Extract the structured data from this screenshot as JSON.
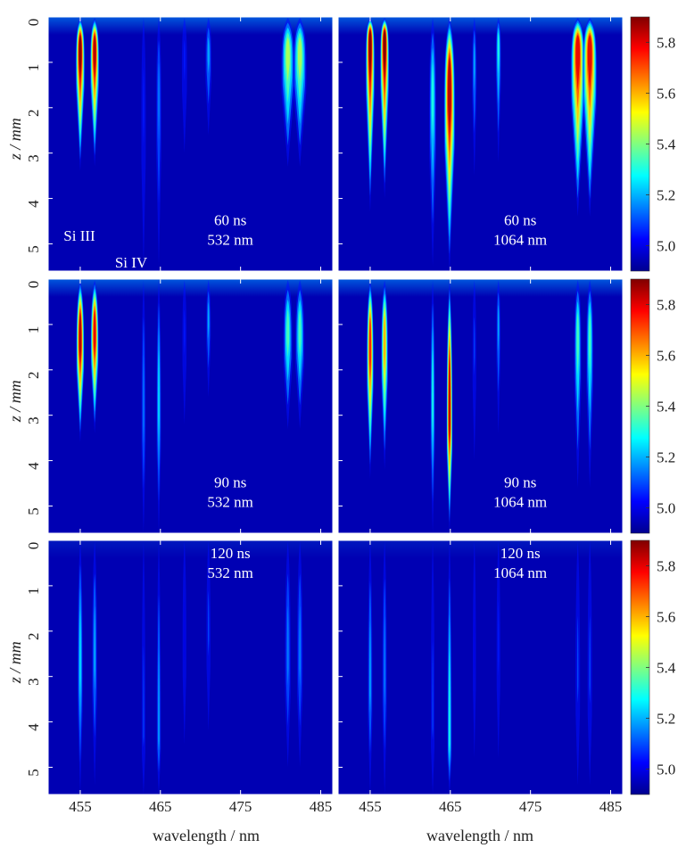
{
  "chart_data": {
    "type": "heatmap",
    "layout": "3 rows x 2 columns",
    "xlabel": "wavelength / nm",
    "ylabel": "z / mm",
    "xlim": [
      451,
      486.5
    ],
    "ylim": [
      0,
      5.6
    ],
    "x_ticks": [
      455,
      465,
      475,
      485
    ],
    "y_ticks": [
      0,
      1,
      2,
      3,
      4,
      5
    ],
    "colorbar": {
      "range": [
        4.9,
        5.9
      ],
      "ticks": [
        5.0,
        5.2,
        5.4,
        5.6,
        5.8
      ],
      "colors": [
        "#00008f",
        "#0000ff",
        "#0080ff",
        "#00ffff",
        "#80ff80",
        "#ffff00",
        "#ff8000",
        "#ff0000",
        "#800000"
      ]
    },
    "line_labels": [
      {
        "text": "Si III",
        "panel": 0
      },
      {
        "text": "Si IV",
        "panel": 0
      }
    ],
    "panels": [
      {
        "row": 0,
        "col": 0,
        "delay": "60 ns",
        "laser": "532 nm",
        "lines": [
          {
            "x": 455.0,
            "peak": 5.9,
            "z_peak": 0.7,
            "z_end": 3.4,
            "w": 0.45
          },
          {
            "x": 456.8,
            "peak": 5.85,
            "z_peak": 0.7,
            "z_end": 3.3,
            "w": 0.45
          },
          {
            "x": 462.9,
            "peak": 5.05,
            "z_peak": 2.0,
            "z_end": 5.5,
            "w": 0.22
          },
          {
            "x": 464.8,
            "peak": 5.15,
            "z_peak": 1.8,
            "z_end": 5.5,
            "w": 0.25
          },
          {
            "x": 468.0,
            "peak": 5.05,
            "z_peak": 0.9,
            "z_end": 3.0,
            "w": 0.25
          },
          {
            "x": 471.0,
            "peak": 5.2,
            "z_peak": 0.8,
            "z_end": 2.6,
            "w": 0.3
          },
          {
            "x": 480.9,
            "peak": 5.45,
            "z_peak": 0.8,
            "z_end": 3.3,
            "w": 0.65
          },
          {
            "x": 482.4,
            "peak": 5.45,
            "z_peak": 0.8,
            "z_end": 3.3,
            "w": 0.65
          }
        ]
      },
      {
        "row": 0,
        "col": 1,
        "delay": "60 ns",
        "laser": "1064 nm",
        "lines": [
          {
            "x": 455.0,
            "peak": 5.9,
            "z_peak": 0.5,
            "z_end": 4.3,
            "w": 0.45
          },
          {
            "x": 456.8,
            "peak": 5.9,
            "z_peak": 0.5,
            "z_end": 4.0,
            "w": 0.45
          },
          {
            "x": 462.8,
            "peak": 5.3,
            "z_peak": 1.8,
            "z_end": 5.5,
            "w": 0.35
          },
          {
            "x": 464.9,
            "peak": 5.85,
            "z_peak": 1.6,
            "z_end": 5.6,
            "w": 0.55
          },
          {
            "x": 468.0,
            "peak": 5.2,
            "z_peak": 1.0,
            "z_end": 3.5,
            "w": 0.22
          },
          {
            "x": 471.0,
            "peak": 5.3,
            "z_peak": 0.6,
            "z_end": 3.2,
            "w": 0.25
          },
          {
            "x": 480.9,
            "peak": 5.8,
            "z_peak": 0.7,
            "z_end": 4.4,
            "w": 0.7
          },
          {
            "x": 482.4,
            "peak": 5.8,
            "z_peak": 0.7,
            "z_end": 4.4,
            "w": 0.7
          }
        ]
      },
      {
        "row": 1,
        "col": 0,
        "delay": "90 ns",
        "laser": "532 nm",
        "lines": [
          {
            "x": 455.0,
            "peak": 5.85,
            "z_peak": 1.3,
            "z_end": 3.6,
            "w": 0.4
          },
          {
            "x": 456.8,
            "peak": 5.8,
            "z_peak": 1.2,
            "z_end": 3.4,
            "w": 0.4
          },
          {
            "x": 462.9,
            "peak": 5.15,
            "z_peak": 3.0,
            "z_end": 5.6,
            "w": 0.2
          },
          {
            "x": 464.8,
            "peak": 5.25,
            "z_peak": 2.8,
            "z_end": 5.6,
            "w": 0.22
          },
          {
            "x": 468.0,
            "peak": 5.05,
            "z_peak": 1.2,
            "z_end": 3.2,
            "w": 0.2
          },
          {
            "x": 471.0,
            "peak": 5.2,
            "z_peak": 0.9,
            "z_end": 2.6,
            "w": 0.22
          },
          {
            "x": 480.9,
            "peak": 5.35,
            "z_peak": 1.2,
            "z_end": 3.3,
            "w": 0.45
          },
          {
            "x": 482.4,
            "peak": 5.35,
            "z_peak": 1.2,
            "z_end": 3.3,
            "w": 0.45
          }
        ]
      },
      {
        "row": 1,
        "col": 1,
        "delay": "90 ns",
        "laser": "1064 nm",
        "lines": [
          {
            "x": 455.0,
            "peak": 5.75,
            "z_peak": 1.5,
            "z_end": 4.4,
            "w": 0.35
          },
          {
            "x": 456.8,
            "peak": 5.6,
            "z_peak": 1.4,
            "z_end": 4.2,
            "w": 0.35
          },
          {
            "x": 462.8,
            "peak": 5.3,
            "z_peak": 2.8,
            "z_end": 5.6,
            "w": 0.22
          },
          {
            "x": 464.9,
            "peak": 5.85,
            "z_peak": 3.0,
            "z_end": 5.6,
            "w": 0.3
          },
          {
            "x": 468.0,
            "peak": 5.1,
            "z_peak": 1.5,
            "z_end": 4.0,
            "w": 0.18
          },
          {
            "x": 471.0,
            "peak": 5.2,
            "z_peak": 1.0,
            "z_end": 3.4,
            "w": 0.2
          },
          {
            "x": 480.9,
            "peak": 5.35,
            "z_peak": 1.3,
            "z_end": 4.6,
            "w": 0.35
          },
          {
            "x": 482.4,
            "peak": 5.35,
            "z_peak": 1.3,
            "z_end": 4.6,
            "w": 0.35
          }
        ]
      },
      {
        "row": 2,
        "col": 0,
        "delay": "120 ns",
        "laser": "532 nm",
        "lines": [
          {
            "x": 455.0,
            "peak": 5.25,
            "z_peak": 2.8,
            "z_end": 5.6,
            "w": 0.25
          },
          {
            "x": 456.8,
            "peak": 5.2,
            "z_peak": 2.6,
            "z_end": 5.4,
            "w": 0.25
          },
          {
            "x": 462.9,
            "peak": 5.1,
            "z_peak": 4.2,
            "z_end": 5.6,
            "w": 0.18
          },
          {
            "x": 464.8,
            "peak": 5.2,
            "z_peak": 4.3,
            "z_end": 5.6,
            "w": 0.2
          },
          {
            "x": 468.0,
            "peak": 5.0,
            "z_peak": 2.2,
            "z_end": 4.5,
            "w": 0.18
          },
          {
            "x": 471.0,
            "peak": 5.1,
            "z_peak": 2.0,
            "z_end": 4.2,
            "w": 0.2
          },
          {
            "x": 480.9,
            "peak": 5.15,
            "z_peak": 2.6,
            "z_end": 5.0,
            "w": 0.28
          },
          {
            "x": 482.4,
            "peak": 5.15,
            "z_peak": 2.6,
            "z_end": 5.0,
            "w": 0.28
          }
        ]
      },
      {
        "row": 2,
        "col": 1,
        "delay": "120 ns",
        "laser": "1064 nm",
        "lines": [
          {
            "x": 455.0,
            "peak": 5.2,
            "z_peak": 3.2,
            "z_end": 5.6,
            "w": 0.22
          },
          {
            "x": 456.8,
            "peak": 5.15,
            "z_peak": 3.0,
            "z_end": 5.6,
            "w": 0.22
          },
          {
            "x": 462.8,
            "peak": 5.1,
            "z_peak": 4.0,
            "z_end": 5.6,
            "w": 0.18
          },
          {
            "x": 464.9,
            "peak": 5.3,
            "z_peak": 4.4,
            "z_end": 5.6,
            "w": 0.22
          },
          {
            "x": 468.0,
            "peak": 5.0,
            "z_peak": 2.5,
            "z_end": 4.8,
            "w": 0.15
          },
          {
            "x": 471.0,
            "peak": 5.05,
            "z_peak": 2.4,
            "z_end": 4.8,
            "w": 0.18
          },
          {
            "x": 480.9,
            "peak": 5.1,
            "z_peak": 3.0,
            "z_end": 5.4,
            "w": 0.22
          },
          {
            "x": 482.4,
            "peak": 5.1,
            "z_peak": 3.0,
            "z_end": 5.4,
            "w": 0.22
          }
        ]
      }
    ]
  }
}
